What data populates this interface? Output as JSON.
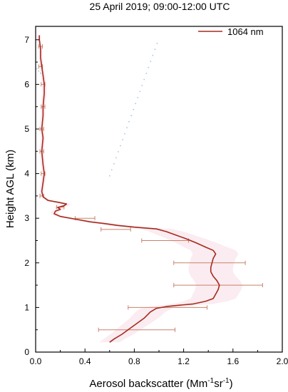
{
  "chart_data": {
    "type": "line",
    "title": "25 April 2019; 09:00-12:00 UTC",
    "xlabel_main": "Aerosol backscatter (Mm",
    "xlabel_sup1": "-1",
    "xlabel_mid": "sr",
    "xlabel_sup2": "-1",
    "xlabel_end": ")",
    "ylabel": "Height AGL (km)",
    "xlim": [
      0.0,
      2.0
    ],
    "ylim": [
      0,
      7.3
    ],
    "xticks": [
      "0.0",
      "0.4",
      "0.8",
      "1.2",
      "1.6",
      "2.0"
    ],
    "yticks": [
      "0",
      "1",
      "2",
      "3",
      "4",
      "5",
      "6",
      "7"
    ],
    "legend": {
      "position": "top-right",
      "label": "1064 nm"
    },
    "grid": false,
    "colors": {
      "line": "#a52a1e",
      "errorbar": "#c9826a",
      "shade": "#f7dce6",
      "dots": "#a8c4e0"
    },
    "series": [
      {
        "name": "1064 nm",
        "points": [
          [
            0.6,
            0.22
          ],
          [
            0.64,
            0.3
          ],
          [
            0.7,
            0.4
          ],
          [
            0.76,
            0.52
          ],
          [
            0.82,
            0.64
          ],
          [
            0.88,
            0.76
          ],
          [
            0.93,
            0.9
          ],
          [
            0.98,
            0.98
          ],
          [
            1.06,
            1.02
          ],
          [
            1.16,
            1.05
          ],
          [
            1.28,
            1.08
          ],
          [
            1.38,
            1.14
          ],
          [
            1.44,
            1.2
          ],
          [
            1.46,
            1.3
          ],
          [
            1.48,
            1.4
          ],
          [
            1.49,
            1.5
          ],
          [
            1.47,
            1.6
          ],
          [
            1.44,
            1.7
          ],
          [
            1.42,
            1.8
          ],
          [
            1.42,
            1.9
          ],
          [
            1.43,
            2.0
          ],
          [
            1.44,
            2.1
          ],
          [
            1.46,
            2.2
          ],
          [
            1.44,
            2.28
          ],
          [
            1.38,
            2.35
          ],
          [
            1.3,
            2.45
          ],
          [
            1.22,
            2.54
          ],
          [
            1.14,
            2.62
          ],
          [
            1.06,
            2.7
          ],
          [
            0.98,
            2.76
          ],
          [
            0.8,
            2.8
          ],
          [
            0.66,
            2.84
          ],
          [
            0.56,
            2.88
          ],
          [
            0.44,
            2.92
          ],
          [
            0.32,
            2.98
          ],
          [
            0.2,
            3.04
          ],
          [
            0.15,
            3.1
          ],
          [
            0.16,
            3.16
          ],
          [
            0.2,
            3.2
          ],
          [
            0.18,
            3.24
          ],
          [
            0.23,
            3.28
          ],
          [
            0.25,
            3.32
          ],
          [
            0.18,
            3.36
          ],
          [
            0.1,
            3.4
          ],
          [
            0.06,
            3.48
          ],
          [
            0.05,
            3.6
          ],
          [
            0.06,
            3.8
          ],
          [
            0.07,
            4.0
          ],
          [
            0.06,
            4.2
          ],
          [
            0.05,
            4.5
          ],
          [
            0.06,
            4.8
          ],
          [
            0.05,
            5.0
          ],
          [
            0.06,
            5.3
          ],
          [
            0.06,
            5.5
          ],
          [
            0.07,
            5.8
          ],
          [
            0.07,
            6.0
          ],
          [
            0.06,
            6.2
          ],
          [
            0.05,
            6.4
          ],
          [
            0.04,
            6.6
          ],
          [
            0.04,
            6.8
          ],
          [
            0.03,
            7.0
          ],
          [
            0.03,
            7.1
          ]
        ]
      }
    ],
    "error_bars": [
      {
        "y": 0.5,
        "x": 0.82,
        "err": 0.31
      },
      {
        "y": 1.0,
        "x": 1.07,
        "err": 0.32
      },
      {
        "y": 1.5,
        "x": 1.48,
        "err": 0.36
      },
      {
        "y": 2.0,
        "x": 1.41,
        "err": 0.29
      },
      {
        "y": 2.5,
        "x": 1.05,
        "err": 0.19
      },
      {
        "y": 2.75,
        "x": 0.65,
        "err": 0.12
      },
      {
        "y": 3.0,
        "x": 0.4,
        "err": 0.08
      },
      {
        "y": 3.25,
        "x": 0.2,
        "err": 0.03
      },
      {
        "y": 3.5,
        "x": 0.05,
        "err": 0.015
      },
      {
        "y": 4.0,
        "x": 0.06,
        "err": 0.015
      },
      {
        "y": 4.5,
        "x": 0.05,
        "err": 0.015
      },
      {
        "y": 5.0,
        "x": 0.05,
        "err": 0.015
      },
      {
        "y": 5.5,
        "x": 0.06,
        "err": 0.015
      },
      {
        "y": 6.0,
        "x": 0.06,
        "err": 0.015
      },
      {
        "y": 6.4,
        "x": 0.04,
        "err": 0.015
      },
      {
        "y": 6.85,
        "x": 0.04,
        "err": 0.015
      }
    ]
  }
}
